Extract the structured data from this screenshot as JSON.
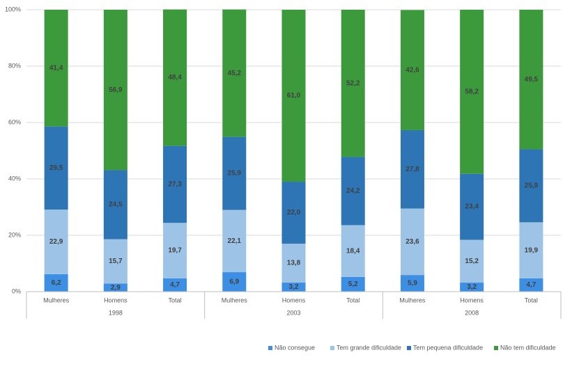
{
  "chart_data": {
    "type": "bar",
    "stacked": true,
    "categories": [
      "Mulheres",
      "Homens",
      "Total",
      "Mulheres",
      "Homens",
      "Total",
      "Mulheres",
      "Homens",
      "Total"
    ],
    "groups": [
      "1998",
      "2003",
      "2008"
    ],
    "series": [
      {
        "name": "Não consegue",
        "color": "#3d8fe3",
        "values": [
          6.2,
          2.9,
          4.7,
          6.9,
          3.2,
          5.2,
          5.9,
          3.2,
          4.7
        ],
        "value_labels": [
          "6,2",
          "2,9",
          "4,7",
          "6,9",
          "3,2",
          "5,2",
          "5,9",
          "3,2",
          "4,7"
        ]
      },
      {
        "name": "Tem grande dificuldade",
        "color": "#9dc3e6",
        "values": [
          22.9,
          15.7,
          19.7,
          22.1,
          13.8,
          18.4,
          23.6,
          15.2,
          19.9
        ],
        "value_labels": [
          "22,9",
          "15,7",
          "19,7",
          "22,1",
          "13,8",
          "18,4",
          "23,6",
          "15,2",
          "19,9"
        ]
      },
      {
        "name": "Tem pequena dificuldade",
        "color": "#2e75b6",
        "values": [
          29.5,
          24.5,
          27.3,
          25.9,
          22.0,
          24.2,
          27.8,
          23.4,
          25.9
        ],
        "value_labels": [
          "29,5",
          "24,5",
          "27,3",
          "25,9",
          "22,0",
          "24,2",
          "27,8",
          "23,4",
          "25,9"
        ]
      },
      {
        "name": "Não tem dificuldade",
        "color": "#3c9a3c",
        "values": [
          41.4,
          56.9,
          48.4,
          45.2,
          61.0,
          52.2,
          42.6,
          58.2,
          49.5
        ],
        "value_labels": [
          "41,4",
          "56,9",
          "48,4",
          "45,2",
          "61,0",
          "52,2",
          "42,6",
          "58,2",
          "49,5"
        ]
      }
    ],
    "ylim": [
      0,
      100
    ],
    "yticks": [
      {
        "value": 0,
        "label": "0%"
      },
      {
        "value": 20,
        "label": "20%"
      },
      {
        "value": 40,
        "label": "40%"
      },
      {
        "value": 60,
        "label": "60%"
      },
      {
        "value": 80,
        "label": "80%"
      },
      {
        "value": 100,
        "label": "100%"
      }
    ],
    "grid": true,
    "legend": "bottom"
  }
}
